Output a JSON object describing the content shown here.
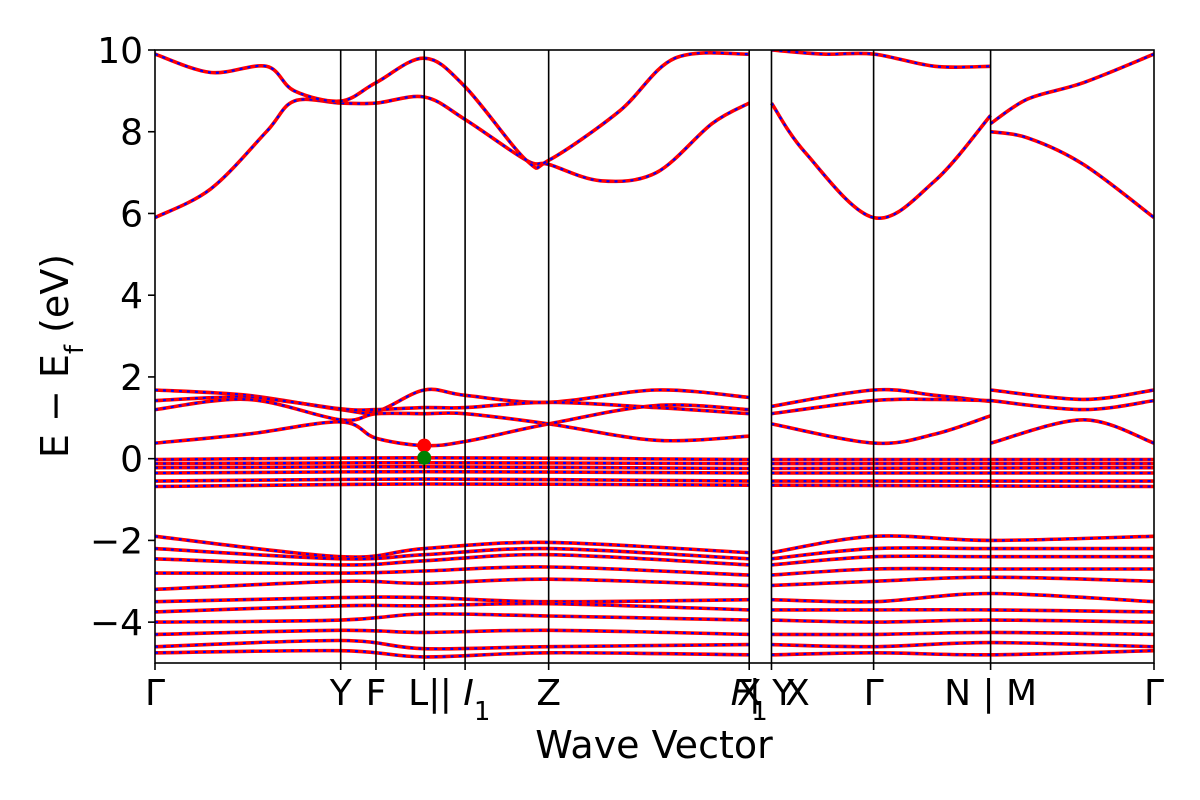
{
  "chart_data": {
    "type": "line",
    "xlabel": "Wave Vector",
    "ylabel_parts": [
      "E − E",
      "f",
      " (eV)"
    ],
    "ylim": [
      -5,
      10
    ],
    "yticks": [
      10,
      8,
      6,
      4,
      2,
      0,
      -2,
      -4
    ],
    "ytick_labels": [
      "10",
      "8",
      "6",
      "4",
      "2",
      "0",
      "−2",
      "−4"
    ],
    "kpath": [
      {
        "label": "Γ",
        "x": 0.0
      },
      {
        "label": "Y",
        "x": 1.0
      },
      {
        "label": "F",
        "x": 1.19
      },
      {
        "label": "L|",
        "x": 1.45
      },
      {
        "label": "I",
        "sub": "1",
        "x": 1.67,
        "prefix": "| "
      },
      {
        "label": "Z",
        "x": 2.12
      },
      {
        "label": "F",
        "sub": "1",
        "x": 3.2,
        "suffix": ""
      },
      {
        "label": "X",
        "x": 3.2,
        "overlay": true
      },
      {
        "label": "| Y",
        "x": 3.32
      },
      {
        "label": "X",
        "x": 3.32,
        "offset": 1
      },
      {
        "label": "Γ",
        "x": 3.87
      },
      {
        "label": "N | M",
        "x": 4.5
      },
      {
        "label": "Γ",
        "x": 5.38
      }
    ],
    "vertical_lines": [
      1.0,
      1.19,
      1.45,
      1.67,
      2.12,
      3.2,
      3.32,
      3.87,
      4.5
    ],
    "xrange": [
      0,
      5.38
    ],
    "line_colors": {
      "primary": "#ff0000",
      "dashed_overlay": "#0000ff"
    },
    "markers": [
      {
        "x": 1.45,
        "y": 0.32,
        "color": "#ff0000",
        "kind": "cbm"
      },
      {
        "x": 1.45,
        "y": 0.02,
        "color": "#008000",
        "kind": "vbm"
      }
    ],
    "series": [
      {
        "values": [
          [
            0,
            5.9
          ],
          [
            0.3,
            6.6
          ],
          [
            0.6,
            8.0
          ],
          [
            0.75,
            8.75
          ],
          [
            1.0,
            8.7
          ],
          [
            1.19,
            8.7
          ],
          [
            1.45,
            8.85
          ],
          [
            1.67,
            8.3
          ],
          [
            2.0,
            7.3
          ],
          [
            2.12,
            7.2
          ],
          [
            2.4,
            6.8
          ],
          [
            2.7,
            7.0
          ],
          [
            3.0,
            8.2
          ],
          [
            3.2,
            8.7
          ]
        ]
      },
      {
        "values": [
          [
            3.32,
            8.7
          ],
          [
            3.5,
            7.5
          ],
          [
            3.87,
            5.9
          ],
          [
            4.2,
            6.8
          ],
          [
            4.5,
            8.4
          ]
        ]
      },
      {
        "values": [
          [
            4.5,
            8.0
          ],
          [
            4.7,
            7.85
          ],
          [
            5.0,
            7.2
          ],
          [
            5.38,
            5.9
          ]
        ]
      },
      {
        "values": [
          [
            0,
            9.9
          ],
          [
            0.3,
            9.45
          ],
          [
            0.6,
            9.6
          ],
          [
            0.75,
            9.0
          ],
          [
            1.0,
            8.75
          ],
          [
            1.19,
            9.2
          ],
          [
            1.45,
            9.8
          ],
          [
            1.67,
            9.1
          ],
          [
            2.0,
            7.3
          ],
          [
            2.12,
            7.3
          ],
          [
            2.5,
            8.5
          ],
          [
            2.8,
            9.8
          ],
          [
            3.2,
            9.9
          ]
        ]
      },
      {
        "values": [
          [
            3.32,
            10.0
          ],
          [
            3.6,
            9.9
          ],
          [
            3.87,
            9.9
          ],
          [
            4.2,
            9.6
          ],
          [
            4.5,
            9.6
          ]
        ]
      },
      {
        "values": [
          [
            4.5,
            8.2
          ],
          [
            4.7,
            8.8
          ],
          [
            5.0,
            9.2
          ],
          [
            5.38,
            9.9
          ]
        ]
      },
      {
        "values": [
          [
            0,
            1.68
          ],
          [
            0.5,
            1.55
          ],
          [
            1.0,
            1.2
          ],
          [
            1.19,
            1.15
          ],
          [
            1.45,
            1.68
          ],
          [
            1.67,
            1.55
          ],
          [
            2.12,
            1.38
          ],
          [
            2.7,
            1.68
          ],
          [
            3.2,
            1.5
          ]
        ]
      },
      {
        "values": [
          [
            0,
            1.42
          ],
          [
            0.5,
            1.5
          ],
          [
            1.0,
            1.22
          ],
          [
            1.19,
            1.2
          ],
          [
            1.45,
            1.25
          ],
          [
            1.67,
            1.25
          ],
          [
            2.12,
            1.38
          ],
          [
            2.7,
            1.25
          ],
          [
            3.2,
            1.1
          ]
        ]
      },
      {
        "values": [
          [
            0,
            1.2
          ],
          [
            0.5,
            1.45
          ],
          [
            1.0,
            0.95
          ],
          [
            1.19,
            1.1
          ],
          [
            1.45,
            1.1
          ],
          [
            1.67,
            1.1
          ],
          [
            2.12,
            0.85
          ],
          [
            2.7,
            0.45
          ],
          [
            3.2,
            0.55
          ]
        ]
      },
      {
        "values": [
          [
            0,
            0.38
          ],
          [
            0.5,
            0.6
          ],
          [
            1.0,
            0.9
          ],
          [
            1.19,
            0.5
          ],
          [
            1.45,
            0.32
          ],
          [
            1.67,
            0.42
          ],
          [
            2.12,
            0.85
          ],
          [
            2.7,
            1.3
          ],
          [
            3.2,
            1.2
          ]
        ]
      },
      {
        "values": [
          [
            3.32,
            1.28
          ],
          [
            3.87,
            1.68
          ],
          [
            4.2,
            1.55
          ],
          [
            4.5,
            1.4
          ]
        ]
      },
      {
        "values": [
          [
            3.32,
            1.1
          ],
          [
            3.87,
            1.42
          ],
          [
            4.2,
            1.45
          ],
          [
            4.5,
            1.42
          ]
        ]
      },
      {
        "values": [
          [
            3.32,
            0.85
          ],
          [
            3.87,
            0.38
          ],
          [
            4.2,
            0.6
          ],
          [
            4.5,
            1.05
          ]
        ]
      },
      {
        "values": [
          [
            4.5,
            1.68
          ],
          [
            5.0,
            1.45
          ],
          [
            5.38,
            1.68
          ]
        ]
      },
      {
        "values": [
          [
            4.5,
            1.42
          ],
          [
            5.0,
            1.2
          ],
          [
            5.38,
            1.42
          ]
        ]
      },
      {
        "values": [
          [
            4.5,
            0.38
          ],
          [
            5.0,
            0.95
          ],
          [
            5.38,
            0.38
          ]
        ]
      },
      {
        "values": [
          [
            0,
            -0.02
          ],
          [
            1.45,
            0.02
          ],
          [
            3.2,
            -0.02
          ]
        ]
      },
      {
        "values": [
          [
            3.32,
            -0.02
          ],
          [
            5.38,
            -0.02
          ]
        ]
      },
      {
        "values": [
          [
            0,
            -0.12
          ],
          [
            1.45,
            -0.1
          ],
          [
            3.2,
            -0.12
          ]
        ]
      },
      {
        "values": [
          [
            3.32,
            -0.12
          ],
          [
            5.38,
            -0.12
          ]
        ]
      },
      {
        "values": [
          [
            0,
            -0.22
          ],
          [
            1.45,
            -0.2
          ],
          [
            3.2,
            -0.24
          ]
        ]
      },
      {
        "values": [
          [
            3.32,
            -0.24
          ],
          [
            5.38,
            -0.22
          ]
        ]
      },
      {
        "values": [
          [
            0,
            -0.35
          ],
          [
            1.45,
            -0.32
          ],
          [
            3.2,
            -0.35
          ]
        ]
      },
      {
        "values": [
          [
            3.32,
            -0.35
          ],
          [
            5.38,
            -0.35
          ]
        ]
      },
      {
        "values": [
          [
            0,
            -0.55
          ],
          [
            1.45,
            -0.5
          ],
          [
            3.2,
            -0.55
          ]
        ]
      },
      {
        "values": [
          [
            3.32,
            -0.55
          ],
          [
            5.38,
            -0.55
          ]
        ]
      },
      {
        "values": [
          [
            0,
            -0.68
          ],
          [
            1.45,
            -0.62
          ],
          [
            3.2,
            -0.65
          ]
        ]
      },
      {
        "values": [
          [
            3.32,
            -0.65
          ],
          [
            5.38,
            -0.68
          ]
        ]
      },
      {
        "values": [
          [
            0,
            -1.9
          ],
          [
            1.0,
            -2.4
          ],
          [
            1.45,
            -2.2
          ],
          [
            2.12,
            -2.05
          ],
          [
            3.2,
            -2.3
          ]
        ]
      },
      {
        "values": [
          [
            3.32,
            -2.3
          ],
          [
            3.87,
            -1.9
          ],
          [
            4.5,
            -2.0
          ],
          [
            5.38,
            -1.9
          ]
        ]
      },
      {
        "values": [
          [
            0,
            -2.2
          ],
          [
            1.0,
            -2.45
          ],
          [
            1.45,
            -2.35
          ],
          [
            2.12,
            -2.2
          ],
          [
            3.2,
            -2.45
          ]
        ]
      },
      {
        "values": [
          [
            3.32,
            -2.45
          ],
          [
            3.87,
            -2.2
          ],
          [
            4.5,
            -2.2
          ],
          [
            5.38,
            -2.2
          ]
        ]
      },
      {
        "values": [
          [
            0,
            -2.45
          ],
          [
            1.0,
            -2.6
          ],
          [
            1.45,
            -2.5
          ],
          [
            2.12,
            -2.35
          ],
          [
            3.2,
            -2.6
          ]
        ]
      },
      {
        "values": [
          [
            3.32,
            -2.6
          ],
          [
            3.87,
            -2.4
          ],
          [
            4.5,
            -2.4
          ],
          [
            5.38,
            -2.4
          ]
        ]
      },
      {
        "values": [
          [
            0,
            -2.8
          ],
          [
            1.0,
            -2.8
          ],
          [
            1.45,
            -2.75
          ],
          [
            2.12,
            -2.65
          ],
          [
            3.2,
            -2.85
          ]
        ]
      },
      {
        "values": [
          [
            3.32,
            -2.85
          ],
          [
            3.87,
            -2.7
          ],
          [
            4.5,
            -2.7
          ],
          [
            5.38,
            -2.7
          ]
        ]
      },
      {
        "values": [
          [
            0,
            -3.2
          ],
          [
            1.0,
            -3.0
          ],
          [
            1.45,
            -3.05
          ],
          [
            2.12,
            -2.95
          ],
          [
            3.2,
            -3.1
          ]
        ]
      },
      {
        "values": [
          [
            3.32,
            -3.1
          ],
          [
            3.87,
            -3.0
          ],
          [
            4.5,
            -2.9
          ],
          [
            5.38,
            -3.0
          ]
        ]
      },
      {
        "values": [
          [
            0,
            -3.5
          ],
          [
            1.0,
            -3.4
          ],
          [
            1.45,
            -3.4
          ],
          [
            2.12,
            -3.5
          ],
          [
            3.2,
            -3.45
          ]
        ]
      },
      {
        "values": [
          [
            3.32,
            -3.45
          ],
          [
            3.87,
            -3.5
          ],
          [
            4.5,
            -3.3
          ],
          [
            5.38,
            -3.5
          ]
        ]
      },
      {
        "values": [
          [
            0,
            -3.75
          ],
          [
            1.0,
            -3.6
          ],
          [
            1.45,
            -3.6
          ],
          [
            2.12,
            -3.55
          ],
          [
            3.2,
            -3.7
          ]
        ]
      },
      {
        "values": [
          [
            3.32,
            -3.7
          ],
          [
            3.87,
            -3.7
          ],
          [
            4.5,
            -3.7
          ],
          [
            5.38,
            -3.75
          ]
        ]
      },
      {
        "values": [
          [
            0,
            -4.0
          ],
          [
            1.0,
            -3.95
          ],
          [
            1.45,
            -3.8
          ],
          [
            2.12,
            -3.85
          ],
          [
            3.2,
            -3.95
          ]
        ]
      },
      {
        "values": [
          [
            3.32,
            -3.95
          ],
          [
            3.87,
            -4.0
          ],
          [
            4.5,
            -3.95
          ],
          [
            5.38,
            -4.0
          ]
        ]
      },
      {
        "values": [
          [
            0,
            -4.3
          ],
          [
            1.0,
            -4.2
          ],
          [
            1.45,
            -4.25
          ],
          [
            2.12,
            -4.2
          ],
          [
            3.2,
            -4.3
          ]
        ]
      },
      {
        "values": [
          [
            3.32,
            -4.3
          ],
          [
            3.87,
            -4.3
          ],
          [
            4.5,
            -4.25
          ],
          [
            5.38,
            -4.3
          ]
        ]
      },
      {
        "values": [
          [
            0,
            -4.6
          ],
          [
            1.0,
            -4.45
          ],
          [
            1.45,
            -4.65
          ],
          [
            2.12,
            -4.6
          ],
          [
            3.2,
            -4.55
          ]
        ]
      },
      {
        "values": [
          [
            3.32,
            -4.55
          ],
          [
            3.87,
            -4.6
          ],
          [
            4.5,
            -4.5
          ],
          [
            5.38,
            -4.6
          ]
        ]
      },
      {
        "values": [
          [
            0,
            -4.75
          ],
          [
            1.0,
            -4.7
          ],
          [
            1.45,
            -4.85
          ],
          [
            2.12,
            -4.75
          ],
          [
            3.2,
            -4.8
          ]
        ]
      },
      {
        "values": [
          [
            3.32,
            -4.8
          ],
          [
            3.87,
            -4.75
          ],
          [
            4.5,
            -4.8
          ],
          [
            5.38,
            -4.7
          ]
        ]
      }
    ]
  }
}
